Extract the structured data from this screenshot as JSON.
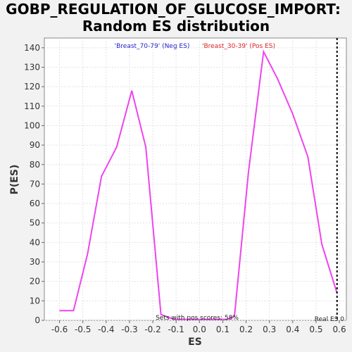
{
  "chart_data": {
    "type": "line",
    "title_line1": "GOBP_REGULATION_OF_GLUCOSE_IMPORT:",
    "title_line2": "Random ES distribution",
    "xlabel": "ES",
    "ylabel": "P(ES)",
    "xlim": [
      -0.665,
      0.63
    ],
    "ylim": [
      0,
      145
    ],
    "xticks": [
      -0.6,
      -0.5,
      -0.4,
      -0.3,
      -0.2,
      -0.1,
      0.0,
      0.1,
      0.2,
      0.3,
      0.4,
      0.5,
      0.6
    ],
    "xtick_labels": [
      "-0.6",
      "-0.5",
      "-0.4",
      "-0.3",
      "-0.2",
      "-0.1",
      "0.0",
      "0.1",
      "0.2",
      "0.3",
      "0.4",
      "0.5",
      "0.6"
    ],
    "yticks": [
      0,
      10,
      20,
      30,
      40,
      50,
      60,
      70,
      80,
      90,
      100,
      110,
      120,
      130,
      140
    ],
    "ytick_labels": [
      "0",
      "10",
      "20",
      "30",
      "40",
      "50",
      "60",
      "70",
      "80",
      "90",
      "100",
      "110",
      "120",
      "130",
      "140"
    ],
    "grid": true,
    "series": [
      {
        "color": "#ee44ee",
        "x": [
          -0.6,
          -0.54,
          -0.48,
          -0.42,
          -0.355,
          -0.29,
          -0.23,
          -0.165,
          -0.11,
          -0.05,
          0.01,
          0.06,
          0.12,
          0.15,
          0.21,
          0.275,
          0.335,
          0.4,
          0.465,
          0.525,
          0.59
        ],
        "y": [
          5,
          5,
          34,
          74,
          89,
          118,
          89,
          3,
          0.5,
          0.5,
          0.5,
          0.5,
          0.5,
          2,
          76,
          138,
          124,
          106,
          84,
          39,
          14
        ]
      }
    ],
    "legend": [
      {
        "text": "'Breast_70-79' (Neg ES)",
        "color": "#2222cc"
      },
      {
        "text": "'Breast_30-39' (Pos ES)",
        "color": "#dd2222"
      }
    ],
    "real_es": {
      "x": 0.59,
      "label": "Real ES 0"
    },
    "annotation": "Sets with pos scores: 58%"
  }
}
